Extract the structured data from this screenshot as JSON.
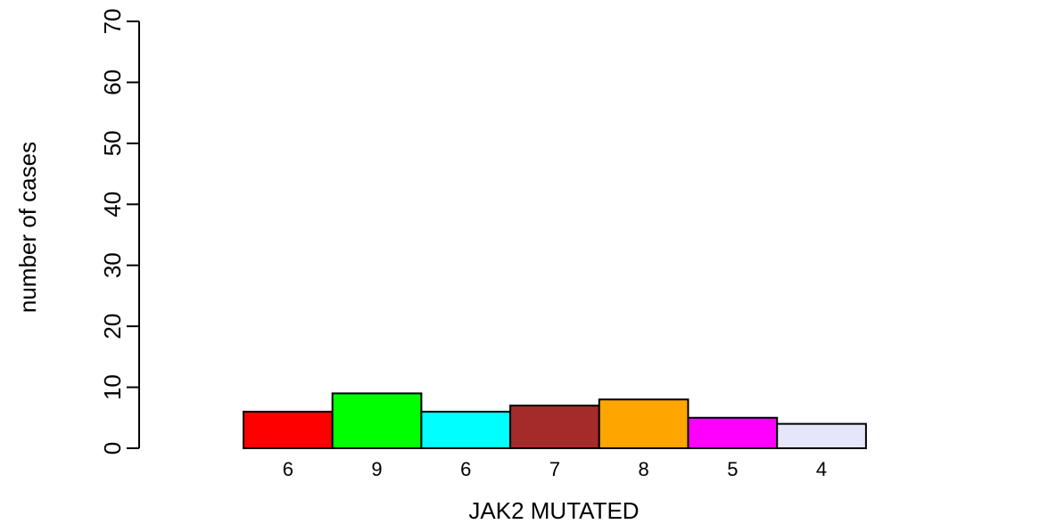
{
  "chart_data": {
    "type": "bar",
    "xlabel": "JAK2 MUTATED",
    "ylabel": "number of cases",
    "ylim": [
      0,
      70
    ],
    "yticks": [
      0,
      10,
      20,
      30,
      40,
      50,
      60,
      70
    ],
    "categories": [
      "6",
      "9",
      "6",
      "7",
      "8",
      "5",
      "4",
      ""
    ],
    "values": [
      6,
      9,
      6,
      7,
      8,
      5,
      4,
      0
    ],
    "colors": [
      "#ff0000",
      "#00ff00",
      "#00ffff",
      "#a52a2a",
      "#ffa500",
      "#ff00ff",
      "#e6e6fa",
      "#ffffff"
    ]
  }
}
